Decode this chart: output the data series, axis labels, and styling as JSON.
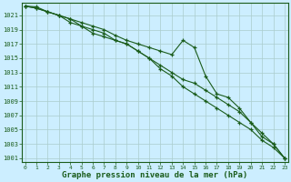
{
  "xlabel": "Graphe pression niveau de la mer (hPa)",
  "xlim": [
    -0.3,
    23.3
  ],
  "ylim": [
    1000.5,
    1022.8
  ],
  "yticks": [
    1001,
    1003,
    1005,
    1007,
    1009,
    1011,
    1013,
    1015,
    1017,
    1019,
    1021
  ],
  "xticks": [
    0,
    1,
    2,
    3,
    4,
    5,
    6,
    7,
    8,
    9,
    10,
    11,
    12,
    13,
    14,
    15,
    16,
    17,
    18,
    19,
    20,
    21,
    22,
    23
  ],
  "bg_color": "#cceeff",
  "grid_color": "#aacccc",
  "line_color": "#1a5c1a",
  "line1_y": [
    1022.3,
    1022.2,
    1021.5,
    1021.0,
    1020.5,
    1020.0,
    1019.5,
    1019.0,
    1018.2,
    1017.5,
    1017.0,
    1016.5,
    1016.0,
    1015.5,
    1017.5,
    1016.5,
    1012.5,
    1010.0,
    1009.5,
    1008.0,
    1006.0,
    1004.0,
    1003.0,
    1001.0
  ],
  "line2_y": [
    1022.3,
    1022.0,
    1021.5,
    1021.0,
    1020.0,
    1019.5,
    1018.5,
    1018.0,
    1017.5,
    1017.0,
    1016.0,
    1015.0,
    1014.0,
    1013.0,
    1012.0,
    1011.5,
    1010.5,
    1009.5,
    1008.5,
    1007.5,
    1006.0,
    1004.5,
    1003.0,
    1001.0
  ],
  "line3_y": [
    1022.3,
    1022.0,
    1021.5,
    1021.0,
    1020.5,
    1019.5,
    1019.0,
    1018.5,
    1017.5,
    1017.0,
    1016.0,
    1015.0,
    1013.5,
    1012.5,
    1011.0,
    1010.0,
    1009.0,
    1008.0,
    1007.0,
    1006.0,
    1005.0,
    1003.5,
    1002.5,
    1001.0
  ]
}
